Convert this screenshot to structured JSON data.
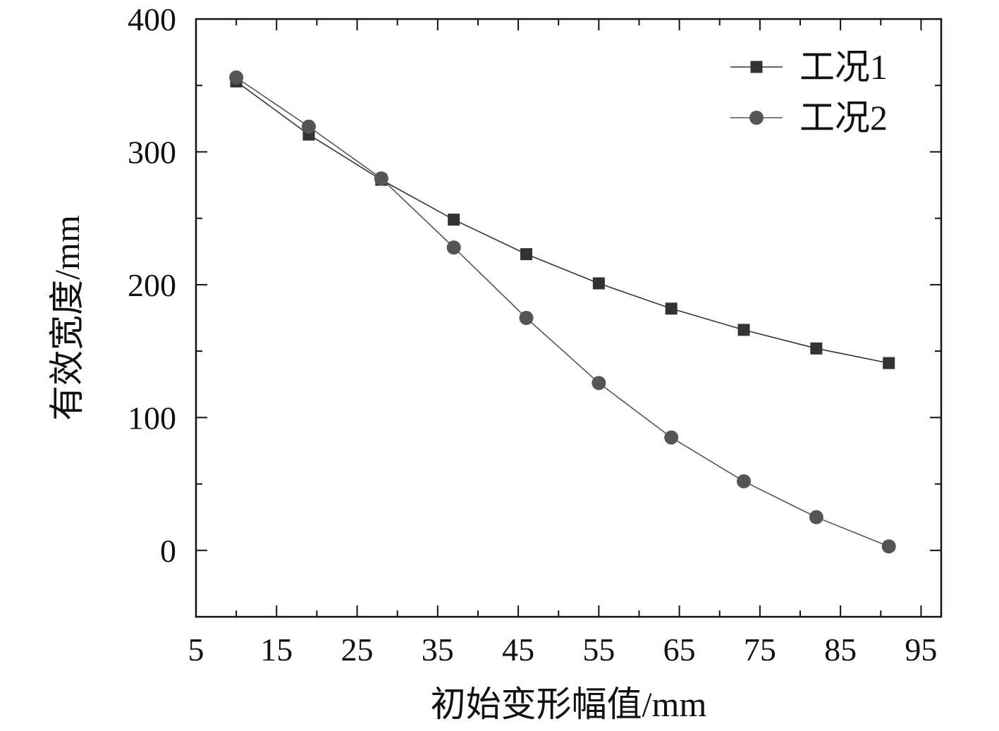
{
  "chart_data": {
    "type": "line",
    "title": "",
    "xlabel": "初始变形幅值/mm",
    "ylabel": "有效宽度/mm",
    "xlim": [
      5,
      97.5
    ],
    "ylim": [
      -50,
      400
    ],
    "x_ticks": [
      5,
      15,
      25,
      35,
      45,
      55,
      65,
      75,
      85,
      95
    ],
    "x_tick_labels": [
      "5",
      "15",
      "25",
      "35",
      "45",
      "55",
      "65",
      "75",
      "85",
      "95"
    ],
    "y_ticks": [
      0,
      100,
      200,
      300,
      400
    ],
    "y_tick_labels": [
      "0",
      "100",
      "200",
      "300",
      "400"
    ],
    "grid": false,
    "legend_position": "top-right",
    "x": [
      10,
      19,
      28,
      37,
      46,
      55,
      64,
      73,
      82,
      91
    ],
    "series": [
      {
        "name": "工况1",
        "marker": "square",
        "color": "#333333",
        "values": [
          353,
          313,
          279,
          249,
          223,
          201,
          182,
          166,
          152,
          141
        ]
      },
      {
        "name": "工况2",
        "marker": "circle",
        "color": "#555555",
        "values": [
          356,
          319,
          280,
          228,
          175,
          126,
          85,
          52,
          25,
          3
        ]
      }
    ]
  }
}
